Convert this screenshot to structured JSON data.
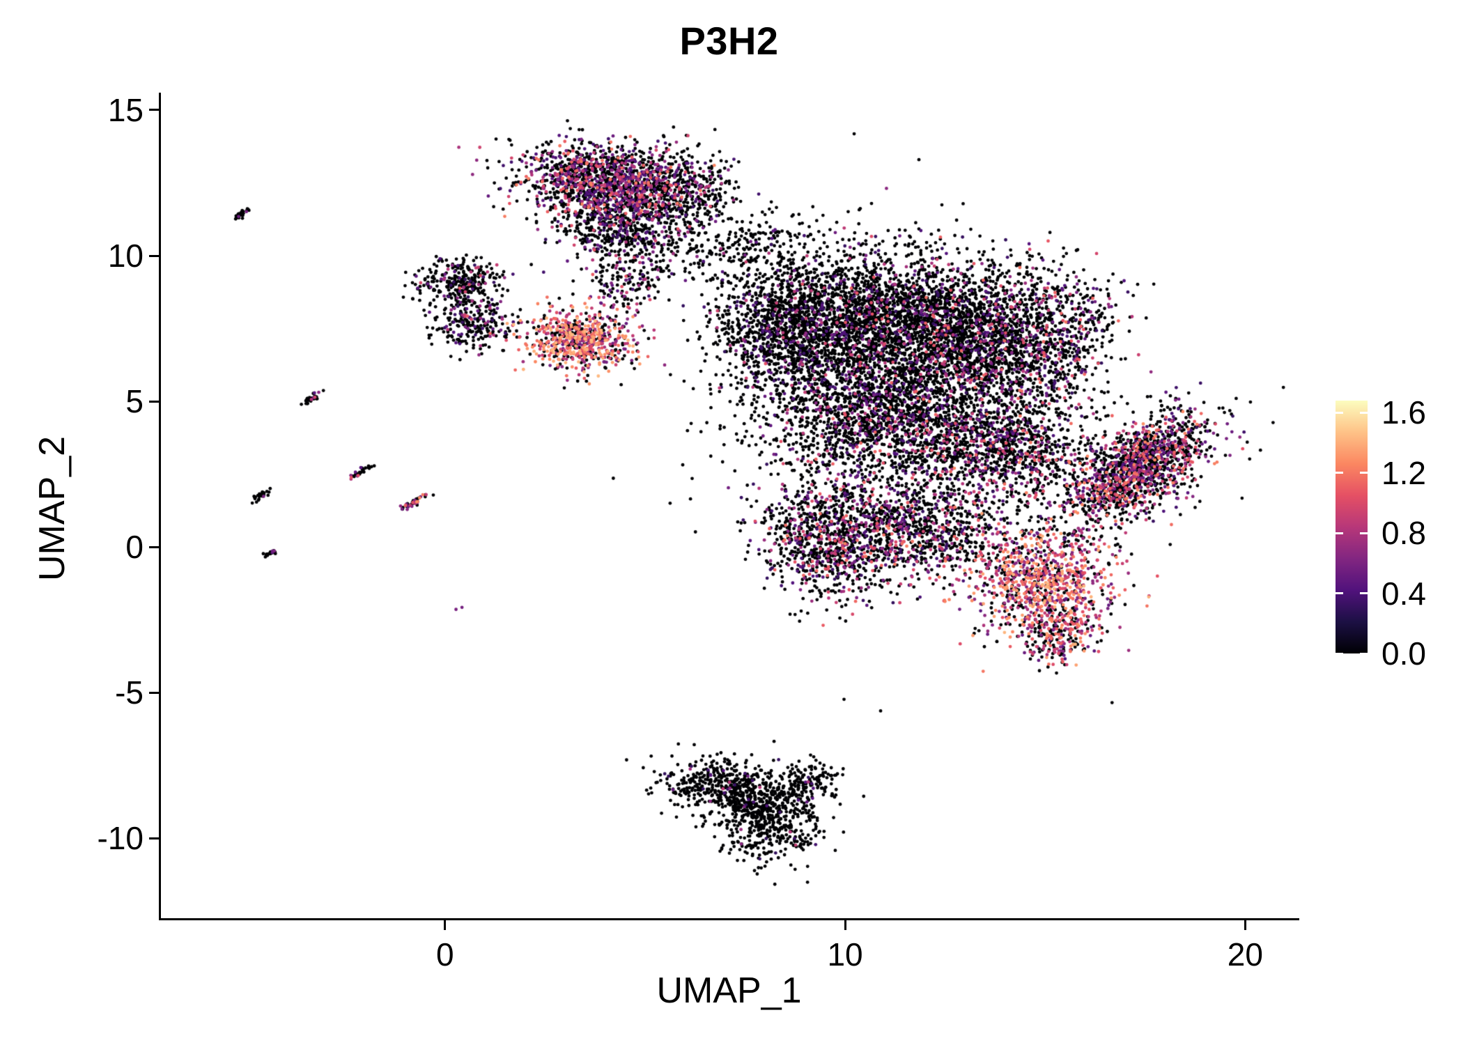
{
  "chart_data": {
    "type": "scatter",
    "title": "P3H2",
    "xlabel": "UMAP_1",
    "ylabel": "UMAP_2",
    "xlim": [
      -7.1,
      21.3
    ],
    "ylim": [
      -12.75,
      15.55
    ],
    "x_ticks": [
      0,
      10,
      20
    ],
    "y_ticks": [
      -10,
      -5,
      0,
      5,
      10,
      15
    ],
    "grid": false,
    "background": "#ffffff",
    "axis_color": "#000000",
    "point_radius_px": 2.4,
    "legend": {
      "type": "colorbar",
      "position": "right",
      "ticks": [
        0.0,
        0.4,
        0.8,
        1.2,
        1.6
      ],
      "vmin": 0,
      "vmax": 1.68
    },
    "colormap": {
      "name": "magma",
      "stops": [
        {
          "t": 0.0,
          "color": "#000004"
        },
        {
          "t": 0.125,
          "color": "#1c1044"
        },
        {
          "t": 0.25,
          "color": "#51127c"
        },
        {
          "t": 0.375,
          "color": "#822681"
        },
        {
          "t": 0.5,
          "color": "#b73779"
        },
        {
          "t": 0.625,
          "color": "#e55064"
        },
        {
          "t": 0.75,
          "color": "#fb8761"
        },
        {
          "t": 0.875,
          "color": "#fec287"
        },
        {
          "t": 1.0,
          "color": "#fcfdbf"
        }
      ]
    },
    "clusters": [
      {
        "name": "top-main",
        "cx": 4.2,
        "cy": 12.55,
        "sx": 1.15,
        "sy": 0.62,
        "rot": -8,
        "n": 1500,
        "p": 0.4,
        "vmin": 0.35,
        "vmax": 1.25,
        "bias": 1.6
      },
      {
        "name": "top-lower",
        "cx": 4.45,
        "cy": 11.0,
        "sx": 0.8,
        "sy": 0.7,
        "rot": 0,
        "n": 600,
        "p": 0.26,
        "vmin": 0.3,
        "vmax": 1.1,
        "bias": 1.8
      },
      {
        "name": "top-right-trail",
        "cx": 6.3,
        "cy": 12.2,
        "sx": 0.55,
        "sy": 0.75,
        "rot": 15,
        "n": 200,
        "p": 0.12,
        "vmin": 0.3,
        "vmax": 0.9,
        "bias": 2.0
      },
      {
        "name": "top-bridge",
        "cx": 5.7,
        "cy": 9.9,
        "sx": 0.9,
        "sy": 0.55,
        "rot": 10,
        "n": 100,
        "p": 0.1,
        "vmin": 0.3,
        "vmax": 0.9,
        "bias": 2.0
      },
      {
        "name": "left-upper",
        "cx": 0.35,
        "cy": 9.1,
        "sx": 0.55,
        "sy": 0.42,
        "rot": 0,
        "n": 290,
        "p": 0.18,
        "vmin": 0.3,
        "vmax": 1.0,
        "bias": 1.8
      },
      {
        "name": "left-lower",
        "cx": 0.7,
        "cy": 7.7,
        "sx": 0.45,
        "sy": 0.55,
        "rot": 0,
        "n": 240,
        "p": 0.22,
        "vmin": 0.3,
        "vmax": 1.15,
        "bias": 1.6
      },
      {
        "name": "hot-left",
        "cx": 3.35,
        "cy": 7.1,
        "sx": 0.7,
        "sy": 0.52,
        "rot": -12,
        "n": 680,
        "p": 0.75,
        "vmin": 0.5,
        "vmax": 1.45,
        "bias": 0.8
      },
      {
        "name": "hot-left-bridge",
        "cx": 4.5,
        "cy": 8.8,
        "sx": 0.5,
        "sy": 0.5,
        "rot": 0,
        "n": 110,
        "p": 0.3,
        "vmin": 0.35,
        "vmax": 1.1,
        "bias": 1.5
      },
      {
        "name": "main-upper-left",
        "cx": 8.6,
        "cy": 7.6,
        "sx": 0.95,
        "sy": 1.3,
        "rot": 0,
        "n": 1300,
        "p": 0.13,
        "vmin": 0.3,
        "vmax": 1.0,
        "bias": 2.0
      },
      {
        "name": "main-upper-mid",
        "cx": 10.9,
        "cy": 7.7,
        "sx": 1.35,
        "sy": 1.25,
        "rot": 0,
        "n": 2300,
        "p": 0.16,
        "vmin": 0.3,
        "vmax": 1.1,
        "bias": 1.9
      },
      {
        "name": "main-upper-right",
        "cx": 13.4,
        "cy": 7.3,
        "sx": 1.05,
        "sy": 1.15,
        "rot": 0,
        "n": 1500,
        "p": 0.2,
        "vmin": 0.3,
        "vmax": 1.2,
        "bias": 1.7
      },
      {
        "name": "main-right-ext",
        "cx": 15.4,
        "cy": 7.2,
        "sx": 0.75,
        "sy": 1.15,
        "rot": -15,
        "n": 550,
        "p": 0.25,
        "vmin": 0.3,
        "vmax": 1.2,
        "bias": 1.6
      },
      {
        "name": "main-mid",
        "cx": 11.2,
        "cy": 4.4,
        "sx": 1.7,
        "sy": 1.05,
        "rot": 0,
        "n": 1900,
        "p": 0.2,
        "vmin": 0.3,
        "vmax": 1.15,
        "bias": 1.8
      },
      {
        "name": "main-mid-right",
        "cx": 14.1,
        "cy": 3.3,
        "sx": 1.0,
        "sy": 1.0,
        "rot": 0,
        "n": 850,
        "p": 0.3,
        "vmin": 0.3,
        "vmax": 1.25,
        "bias": 1.5
      },
      {
        "name": "main-lower-left",
        "cx": 9.6,
        "cy": 0.3,
        "sx": 0.85,
        "sy": 1.05,
        "rot": 0,
        "n": 950,
        "p": 0.3,
        "vmin": 0.3,
        "vmax": 1.2,
        "bias": 1.5
      },
      {
        "name": "main-lower-mid",
        "cx": 11.9,
        "cy": 0.6,
        "sx": 1.05,
        "sy": 0.9,
        "rot": 0,
        "n": 850,
        "p": 0.32,
        "vmin": 0.3,
        "vmax": 1.25,
        "bias": 1.5
      },
      {
        "name": "hot-lower-right",
        "cx": 14.9,
        "cy": -1.2,
        "sx": 0.9,
        "sy": 0.95,
        "rot": 0,
        "n": 950,
        "p": 0.7,
        "vmin": 0.45,
        "vmax": 1.45,
        "bias": 0.9
      },
      {
        "name": "hot-tail",
        "cx": 15.35,
        "cy": -3.0,
        "sx": 0.45,
        "sy": 0.55,
        "rot": 0,
        "n": 230,
        "p": 0.55,
        "vmin": 0.4,
        "vmax": 1.4,
        "bias": 1.0
      },
      {
        "name": "main-halo",
        "cx": 11.4,
        "cy": 4.2,
        "sx": 2.7,
        "sy": 2.9,
        "rot": 0,
        "n": 260,
        "p": 0.05,
        "vmin": 0.3,
        "vmax": 0.8,
        "bias": 2.0
      },
      {
        "name": "right-diag",
        "cx": 17.3,
        "cy": 2.65,
        "sx": 1.1,
        "sy": 0.58,
        "rot": 47,
        "n": 1150,
        "p": 0.48,
        "vmin": 0.35,
        "vmax": 1.3,
        "bias": 1.2
      },
      {
        "name": "right-diag-fringe",
        "cx": 17.25,
        "cy": 2.6,
        "sx": 1.5,
        "sy": 0.8,
        "rot": 47,
        "n": 280,
        "p": 0.15,
        "vmin": 0.3,
        "vmax": 1.0,
        "bias": 2.0
      },
      {
        "name": "bottom-a",
        "cx": 7.1,
        "cy": -8.3,
        "sx": 0.85,
        "sy": 0.5,
        "rot": -12,
        "n": 560,
        "p": 0.04,
        "vmin": 0.3,
        "vmax": 0.9,
        "bias": 2.5
      },
      {
        "name": "bottom-b",
        "cx": 8.2,
        "cy": -9.4,
        "sx": 0.62,
        "sy": 0.75,
        "rot": 0,
        "n": 480,
        "p": 0.03,
        "vmin": 0.3,
        "vmax": 0.9,
        "bias": 2.5
      },
      {
        "name": "bottom-tip",
        "cx": 9.15,
        "cy": -8.05,
        "sx": 0.35,
        "sy": 0.3,
        "rot": 0,
        "n": 120,
        "p": 0.03,
        "vmin": 0.3,
        "vmax": 0.8,
        "bias": 2.5
      },
      {
        "name": "satellite-1",
        "cx": -5.1,
        "cy": 11.4,
        "sx": 0.16,
        "sy": 0.05,
        "rot": 40,
        "n": 28,
        "p": 0.05,
        "vmin": 0.3,
        "vmax": 0.8,
        "bias": 2.0
      },
      {
        "name": "satellite-2",
        "cx": -3.3,
        "cy": 5.1,
        "sx": 0.18,
        "sy": 0.05,
        "rot": 40,
        "n": 34,
        "p": 0.2,
        "vmin": 0.4,
        "vmax": 1.0,
        "bias": 1.5
      },
      {
        "name": "satellite-3",
        "cx": -2.15,
        "cy": 2.55,
        "sx": 0.16,
        "sy": 0.05,
        "rot": 40,
        "n": 30,
        "p": 0.3,
        "vmin": 0.4,
        "vmax": 1.1,
        "bias": 1.5
      },
      {
        "name": "satellite-4",
        "cx": -4.55,
        "cy": 1.8,
        "sx": 0.15,
        "sy": 0.05,
        "rot": 40,
        "n": 26,
        "p": 0.05,
        "vmin": 0.3,
        "vmax": 0.8,
        "bias": 2.0
      },
      {
        "name": "satellite-5",
        "cx": -0.75,
        "cy": 1.55,
        "sx": 0.2,
        "sy": 0.05,
        "rot": 40,
        "n": 42,
        "p": 0.5,
        "vmin": 0.5,
        "vmax": 1.3,
        "bias": 1.0
      },
      {
        "name": "satellite-6",
        "cx": -4.35,
        "cy": -0.2,
        "sx": 0.14,
        "sy": 0.04,
        "rot": 40,
        "n": 24,
        "p": 0.15,
        "vmin": 0.4,
        "vmax": 1.0,
        "bias": 1.5
      },
      {
        "name": "satellite-7",
        "cx": 0.35,
        "cy": -2.1,
        "sx": 0.05,
        "sy": 0.05,
        "rot": 0,
        "n": 2,
        "p": 0.9,
        "vmin": 0.5,
        "vmax": 0.8,
        "bias": 1.0
      },
      {
        "name": "bridge-main-top",
        "cx": 7.5,
        "cy": 10.4,
        "sx": 0.75,
        "sy": 0.5,
        "rot": 25,
        "n": 130,
        "p": 0.08,
        "vmin": 0.3,
        "vmax": 0.9,
        "bias": 2.0
      }
    ]
  }
}
